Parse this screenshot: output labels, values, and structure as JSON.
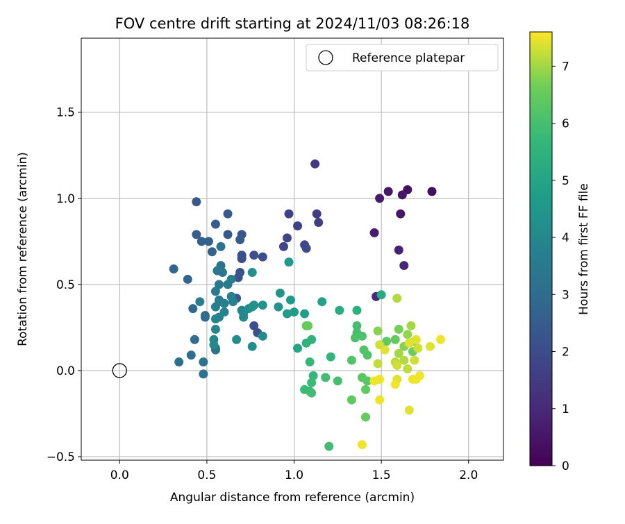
{
  "chart_data": {
    "type": "scatter",
    "title": "FOV centre drift starting at 2024/11/03 08:26:18",
    "xlabel": "Angular distance from reference (arcmin)",
    "ylabel": "Rotation from reference (arcmin)",
    "xlim": [
      -0.22,
      2.2
    ],
    "ylim": [
      -0.52,
      1.93
    ],
    "x_ticks": [
      0.0,
      0.5,
      1.0,
      1.5,
      2.0
    ],
    "x_tick_labels": [
      "0.0",
      "0.5",
      "1.0",
      "1.5",
      "2.0"
    ],
    "y_ticks": [
      -0.5,
      0.0,
      0.5,
      1.0,
      1.5
    ],
    "y_tick_labels": [
      "−0.5",
      "0.0",
      "0.5",
      "1.0",
      "1.5"
    ],
    "grid": true,
    "legend": {
      "position": "top-right",
      "entries": [
        "Reference platepar"
      ]
    },
    "reference_point": {
      "x": 0.0,
      "y": 0.0
    },
    "colorbar": {
      "label": "Hours from first FF file",
      "colormap": "viridis",
      "range": [
        0,
        7.6
      ],
      "ticks": [
        0,
        1,
        2,
        3,
        4,
        5,
        6,
        7
      ],
      "tick_labels": [
        "0",
        "1",
        "2",
        "3",
        "4",
        "5",
        "6",
        "7"
      ]
    },
    "points": [
      {
        "x": 1.79,
        "y": 1.04,
        "h": 0.3
      },
      {
        "x": 1.65,
        "y": 1.05,
        "h": 0.4
      },
      {
        "x": 1.62,
        "y": 1.02,
        "h": 0.5
      },
      {
        "x": 1.54,
        "y": 1.04,
        "h": 0.5
      },
      {
        "x": 1.49,
        "y": 1.0,
        "h": 0.6
      },
      {
        "x": 1.61,
        "y": 0.91,
        "h": 0.5
      },
      {
        "x": 1.46,
        "y": 0.8,
        "h": 0.7
      },
      {
        "x": 1.6,
        "y": 0.7,
        "h": 0.8
      },
      {
        "x": 1.63,
        "y": 0.61,
        "h": 0.9
      },
      {
        "x": 1.47,
        "y": 0.43,
        "h": 1.0
      },
      {
        "x": 1.12,
        "y": 1.2,
        "h": 1.5
      },
      {
        "x": 1.13,
        "y": 0.91,
        "h": 1.6
      },
      {
        "x": 1.14,
        "y": 0.86,
        "h": 1.6
      },
      {
        "x": 0.97,
        "y": 0.91,
        "h": 1.7
      },
      {
        "x": 1.02,
        "y": 0.84,
        "h": 1.7
      },
      {
        "x": 0.96,
        "y": 0.77,
        "h": 1.8
      },
      {
        "x": 0.94,
        "y": 0.72,
        "h": 1.8
      },
      {
        "x": 1.06,
        "y": 0.73,
        "h": 1.9
      },
      {
        "x": 1.07,
        "y": 0.71,
        "h": 1.9
      },
      {
        "x": 0.77,
        "y": 0.67,
        "h": 2.0
      },
      {
        "x": 0.82,
        "y": 0.66,
        "h": 2.0
      },
      {
        "x": 0.7,
        "y": 0.67,
        "h": 2.1
      },
      {
        "x": 0.7,
        "y": 0.65,
        "h": 2.1
      },
      {
        "x": 0.69,
        "y": 0.57,
        "h": 2.2
      },
      {
        "x": 0.68,
        "y": 0.54,
        "h": 2.2
      },
      {
        "x": 0.67,
        "y": 0.42,
        "h": 2.3
      },
      {
        "x": 0.77,
        "y": 0.26,
        "h": 2.0
      },
      {
        "x": 0.79,
        "y": 0.22,
        "h": 2.1
      },
      {
        "x": 0.44,
        "y": 0.98,
        "h": 2.4
      },
      {
        "x": 0.62,
        "y": 0.91,
        "h": 2.4
      },
      {
        "x": 0.55,
        "y": 0.85,
        "h": 2.5
      },
      {
        "x": 0.44,
        "y": 0.79,
        "h": 2.5
      },
      {
        "x": 0.62,
        "y": 0.79,
        "h": 2.4
      },
      {
        "x": 0.47,
        "y": 0.75,
        "h": 2.6
      },
      {
        "x": 0.51,
        "y": 0.75,
        "h": 2.6
      },
      {
        "x": 0.53,
        "y": 0.69,
        "h": 2.7
      },
      {
        "x": 0.7,
        "y": 0.79,
        "h": 2.3
      },
      {
        "x": 0.69,
        "y": 0.76,
        "h": 2.4
      },
      {
        "x": 0.31,
        "y": 0.59,
        "h": 2.8
      },
      {
        "x": 0.39,
        "y": 0.53,
        "h": 2.8
      },
      {
        "x": 0.42,
        "y": 0.36,
        "h": 2.9
      },
      {
        "x": 0.49,
        "y": 0.32,
        "h": 3.0
      },
      {
        "x": 0.49,
        "y": 0.31,
        "h": 3.0
      },
      {
        "x": 0.43,
        "y": 0.18,
        "h": 3.0
      },
      {
        "x": 0.41,
        "y": 0.09,
        "h": 3.1
      },
      {
        "x": 0.34,
        "y": 0.05,
        "h": 3.1
      },
      {
        "x": 0.48,
        "y": 0.05,
        "h": 3.2
      },
      {
        "x": 0.48,
        "y": -0.02,
        "h": 3.2
      },
      {
        "x": 0.55,
        "y": 0.13,
        "h": 3.3
      },
      {
        "x": 0.55,
        "y": 0.12,
        "h": 3.3
      },
      {
        "x": 0.58,
        "y": 0.61,
        "h": 3.3
      },
      {
        "x": 0.58,
        "y": 0.72,
        "h": 3.2
      },
      {
        "x": 0.56,
        "y": 0.58,
        "h": 3.4
      },
      {
        "x": 0.59,
        "y": 0.57,
        "h": 3.4
      },
      {
        "x": 0.57,
        "y": 0.5,
        "h": 3.5
      },
      {
        "x": 0.55,
        "y": 0.46,
        "h": 3.5
      },
      {
        "x": 0.62,
        "y": 0.5,
        "h": 3.5
      },
      {
        "x": 0.64,
        "y": 0.53,
        "h": 3.6
      },
      {
        "x": 0.57,
        "y": 0.41,
        "h": 3.6
      },
      {
        "x": 0.57,
        "y": 0.4,
        "h": 3.6
      },
      {
        "x": 0.6,
        "y": 0.39,
        "h": 3.7
      },
      {
        "x": 0.55,
        "y": 0.37,
        "h": 3.7
      },
      {
        "x": 0.6,
        "y": 0.34,
        "h": 3.8
      },
      {
        "x": 0.55,
        "y": 0.3,
        "h": 3.8
      },
      {
        "x": 0.57,
        "y": 0.31,
        "h": 3.8
      },
      {
        "x": 0.55,
        "y": 0.24,
        "h": 3.9
      },
      {
        "x": 0.54,
        "y": 0.18,
        "h": 3.9
      },
      {
        "x": 0.54,
        "y": 0.15,
        "h": 4.0
      },
      {
        "x": 0.46,
        "y": 0.4,
        "h": 3.6
      },
      {
        "x": 0.64,
        "y": 0.43,
        "h": 3.7
      },
      {
        "x": 0.65,
        "y": 0.4,
        "h": 3.8
      },
      {
        "x": 0.7,
        "y": 0.35,
        "h": 3.9
      },
      {
        "x": 0.71,
        "y": 0.31,
        "h": 4.0
      },
      {
        "x": 0.71,
        "y": 0.33,
        "h": 4.0
      },
      {
        "x": 0.67,
        "y": 0.18,
        "h": 4.1
      },
      {
        "x": 0.82,
        "y": 0.2,
        "h": 4.1
      },
      {
        "x": 0.74,
        "y": 0.36,
        "h": 4.2
      },
      {
        "x": 0.76,
        "y": 0.37,
        "h": 4.3
      },
      {
        "x": 0.77,
        "y": 0.38,
        "h": 4.3
      },
      {
        "x": 0.82,
        "y": 0.38,
        "h": 4.4
      },
      {
        "x": 0.76,
        "y": 0.14,
        "h": 4.2
      },
      {
        "x": 0.76,
        "y": 0.57,
        "h": 4.3
      },
      {
        "x": 0.92,
        "y": 0.45,
        "h": 4.4
      },
      {
        "x": 0.91,
        "y": 0.37,
        "h": 4.4
      },
      {
        "x": 0.97,
        "y": 0.63,
        "h": 4.6
      },
      {
        "x": 0.98,
        "y": 0.41,
        "h": 4.6
      },
      {
        "x": 0.96,
        "y": 0.33,
        "h": 4.7
      },
      {
        "x": 1.0,
        "y": 0.34,
        "h": 4.7
      },
      {
        "x": 1.06,
        "y": 0.33,
        "h": 4.8
      },
      {
        "x": 1.16,
        "y": 0.4,
        "h": 4.9
      },
      {
        "x": 1.02,
        "y": 0.13,
        "h": 5.0
      },
      {
        "x": 1.5,
        "y": 0.44,
        "h": 5.2
      },
      {
        "x": 1.26,
        "y": 0.35,
        "h": 5.3
      },
      {
        "x": 1.36,
        "y": 0.35,
        "h": 5.4
      },
      {
        "x": 1.1,
        "y": 0.18,
        "h": 5.5
      },
      {
        "x": 1.07,
        "y": 0.16,
        "h": 5.5
      },
      {
        "x": 1.21,
        "y": 0.08,
        "h": 5.6
      },
      {
        "x": 1.09,
        "y": 0.05,
        "h": 5.7
      },
      {
        "x": 1.11,
        "y": -0.03,
        "h": 5.7
      },
      {
        "x": 1.1,
        "y": -0.07,
        "h": 5.8
      },
      {
        "x": 1.06,
        "y": -0.11,
        "h": 5.8
      },
      {
        "x": 1.09,
        "y": -0.12,
        "h": 5.8
      },
      {
        "x": 1.1,
        "y": -0.13,
        "h": 5.9
      },
      {
        "x": 1.18,
        "y": -0.04,
        "h": 5.9
      },
      {
        "x": 1.25,
        "y": -0.06,
        "h": 6.0
      },
      {
        "x": 1.2,
        "y": -0.44,
        "h": 5.9
      },
      {
        "x": 1.36,
        "y": 0.26,
        "h": 6.0
      },
      {
        "x": 1.36,
        "y": 0.22,
        "h": 6.0
      },
      {
        "x": 1.39,
        "y": 0.2,
        "h": 6.1
      },
      {
        "x": 1.35,
        "y": 0.19,
        "h": 6.1
      },
      {
        "x": 1.4,
        "y": 0.12,
        "h": 6.2
      },
      {
        "x": 1.42,
        "y": 0.09,
        "h": 6.2
      },
      {
        "x": 1.33,
        "y": 0.06,
        "h": 6.2
      },
      {
        "x": 1.39,
        "y": -0.04,
        "h": 6.3
      },
      {
        "x": 1.42,
        "y": -0.06,
        "h": 6.3
      },
      {
        "x": 1.41,
        "y": -0.11,
        "h": 6.4
      },
      {
        "x": 1.33,
        "y": -0.17,
        "h": 6.4
      },
      {
        "x": 1.41,
        "y": -0.27,
        "h": 6.5
      },
      {
        "x": 1.07,
        "y": 0.26,
        "h": 6.5
      },
      {
        "x": 1.08,
        "y": 0.26,
        "h": 6.5
      },
      {
        "x": 1.53,
        "y": 0.17,
        "h": 6.4
      },
      {
        "x": 1.58,
        "y": 0.18,
        "h": 6.5
      },
      {
        "x": 1.6,
        "y": 0.24,
        "h": 6.7
      },
      {
        "x": 1.68,
        "y": 0.11,
        "h": 6.6
      },
      {
        "x": 1.48,
        "y": 0.23,
        "h": 6.8
      },
      {
        "x": 1.63,
        "y": 0.14,
        "h": 6.8
      },
      {
        "x": 1.69,
        "y": 0.17,
        "h": 6.8
      },
      {
        "x": 1.65,
        "y": 0.21,
        "h": 6.9
      },
      {
        "x": 1.67,
        "y": 0.26,
        "h": 7.0
      },
      {
        "x": 1.6,
        "y": 0.1,
        "h": 7.0
      },
      {
        "x": 1.59,
        "y": 0.42,
        "h": 7.1
      },
      {
        "x": 1.63,
        "y": 0.06,
        "h": 7.1
      },
      {
        "x": 1.65,
        "y": 0.01,
        "h": 7.2
      },
      {
        "x": 1.48,
        "y": 0.04,
        "h": 7.2
      },
      {
        "x": 1.58,
        "y": 0.05,
        "h": 7.2
      },
      {
        "x": 1.59,
        "y": 0.03,
        "h": 7.3
      },
      {
        "x": 1.69,
        "y": 0.06,
        "h": 7.3
      },
      {
        "x": 1.71,
        "y": 0.13,
        "h": 7.3
      },
      {
        "x": 1.7,
        "y": 0.18,
        "h": 7.4
      },
      {
        "x": 1.78,
        "y": 0.14,
        "h": 7.4
      },
      {
        "x": 1.84,
        "y": 0.18,
        "h": 7.5
      },
      {
        "x": 1.49,
        "y": 0.15,
        "h": 7.3
      },
      {
        "x": 1.52,
        "y": 0.12,
        "h": 7.4
      },
      {
        "x": 1.66,
        "y": 0.16,
        "h": 7.4
      },
      {
        "x": 1.72,
        "y": -0.03,
        "h": 7.5
      },
      {
        "x": 1.68,
        "y": -0.05,
        "h": 7.5
      },
      {
        "x": 1.7,
        "y": -0.05,
        "h": 7.5
      },
      {
        "x": 1.59,
        "y": -0.05,
        "h": 7.4
      },
      {
        "x": 1.58,
        "y": -0.08,
        "h": 7.5
      },
      {
        "x": 1.49,
        "y": -0.05,
        "h": 7.5
      },
      {
        "x": 1.46,
        "y": -0.06,
        "h": 7.5
      },
      {
        "x": 1.49,
        "y": -0.17,
        "h": 7.5
      },
      {
        "x": 1.66,
        "y": -0.23,
        "h": 7.4
      },
      {
        "x": 1.39,
        "y": -0.43,
        "h": 7.5
      }
    ]
  }
}
